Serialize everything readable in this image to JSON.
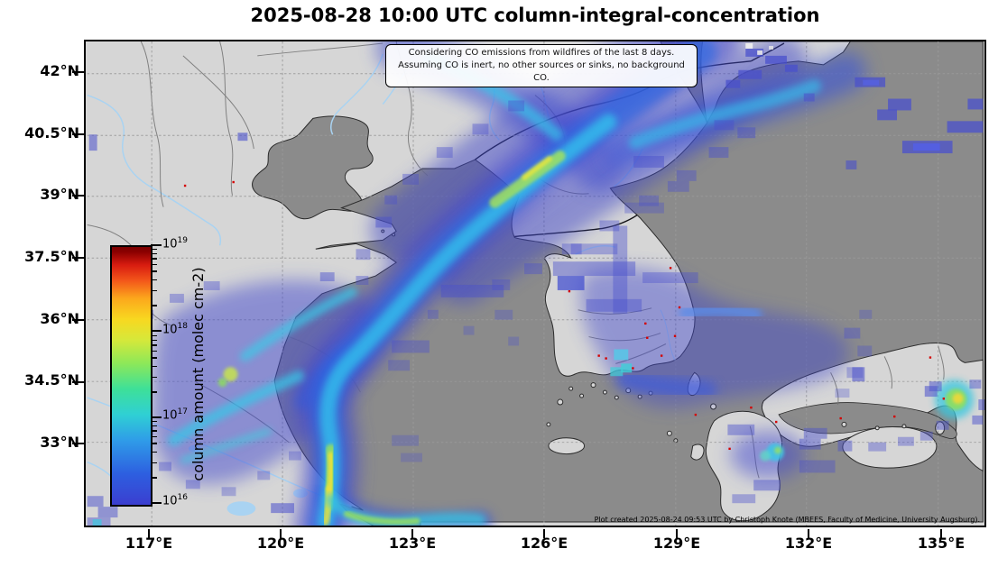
{
  "title": "2025-08-28 10:00 UTC column-integral-concentration",
  "annotation": {
    "line1": "Considering CO emissions from wildfires of the last 8 days.",
    "line2": "Assuming CO is inert, no other sources or sinks, no background CO."
  },
  "axes": {
    "x_ticks": [
      "117°E",
      "120°E",
      "123°E",
      "126°E",
      "129°E",
      "132°E",
      "135°E"
    ],
    "y_ticks": [
      "42°N",
      "40.5°N",
      "39°N",
      "37.5°N",
      "36°N",
      "34.5°N",
      "33°N"
    ]
  },
  "colorbar": {
    "label": "column amount (molec cm-2)",
    "base": "10",
    "tick_exponents": [
      "19",
      "18",
      "17",
      "16"
    ],
    "scale": "log10",
    "gradient_bottom_to_top": [
      "#3b3ed0",
      "#2d5fe0",
      "#2f9ce8",
      "#2fd0d4",
      "#3ee098",
      "#8ee858",
      "#d6e83a",
      "#f8d820",
      "#fca81c",
      "#f3561a",
      "#d81c10",
      "#7a0000"
    ]
  },
  "credit": "Plot created 2025-08-24 09:53 UTC by Christoph Knote (MBEES, Faculty of Medicine, University Augsburg).",
  "map_colors": {
    "land": "#d6d6d6",
    "ocean": "#8b8b8b",
    "river": "#a9d3f2",
    "gridline": "#9a9a9a",
    "coastline": "#2b2b2b",
    "fire_marker": "#d40000"
  },
  "chart_data": {
    "type": "heatmap",
    "title": "2025-08-28 10:00 UTC column-integral-concentration",
    "x_tick_values_deg_east": [
      117,
      120,
      123,
      126,
      129,
      132,
      135
    ],
    "y_tick_values_deg_north": [
      33,
      34.5,
      36,
      37.5,
      39,
      40.5,
      42
    ],
    "x_range_deg_east": [
      115.5,
      136.0
    ],
    "y_range_deg_north": [
      31.0,
      42.8
    ],
    "colorbar_label": "column amount (molec cm-2)",
    "colorbar_range": [
      1e+16,
      1e+19
    ],
    "colorbar_scale": "log10",
    "grid": true,
    "legend_position": "inset-left-colorbar",
    "features": [
      {
        "name": "main-plume-band",
        "description": "Continuous CO plume from Shanghai/Yangtze delta (~121.5E,31N) curving north then northeast across the Yellow Sea, Liaodong and NE China/North Korea border, exiting the top edge near 131-135E; core values ~1e17-1e18 (cyan-green), peak yellow ~1e18 near the Yangtze mouth and over the NE China border."
      },
      {
        "name": "western-fan",
        "description": "Broad diffuse blue fan (~1e16-1e17) over eastern China around 117-122E, 33-37N with cyan streaks."
      },
      {
        "name": "korea-patch",
        "description": "Blue patches (~1e16-5e16) over central/southeast South Korea extending east into the Sea of Japan toward 133E."
      },
      {
        "name": "japan-patches",
        "description": "Scattered blue cells over Kyushu, the Seto Inland Sea coast and a cyan-green-yellow hotspot near the Kii peninsula (~135.5E,34.3N); cyan spot over NW Kyushu."
      },
      {
        "name": "sea-of-japan-streaks",
        "description": "Isolated horizontal blue streaks (~1e16) across the Sea of Japan between 40-42.5N."
      },
      {
        "name": "fire-markers",
        "description": "Small red dots marking wildfire locations over South Korea, western Japan and near the Bohai coast."
      }
    ]
  }
}
